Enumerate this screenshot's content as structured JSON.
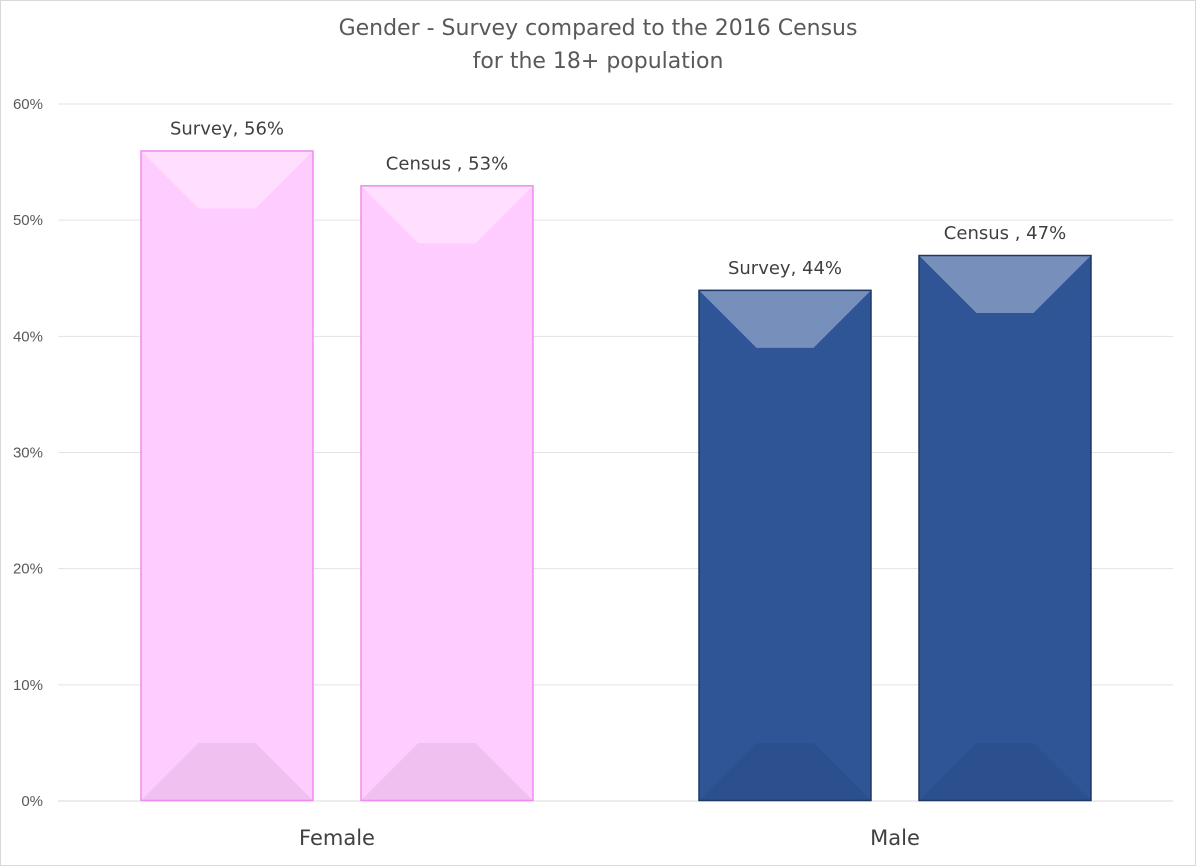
{
  "chart_data": {
    "type": "bar",
    "title": "Gender - Survey compared to the 2016 Census",
    "subtitle": "for the 18+ population",
    "categories": [
      "Female",
      "Male"
    ],
    "y_tick_labels": [
      "0%",
      "10%",
      "20%",
      "30%",
      "40%",
      "50%",
      "60%"
    ],
    "ylim": [
      0,
      60
    ],
    "grid": true,
    "legend": "none",
    "bars": [
      {
        "category": "Female",
        "label": "Survey, 56%",
        "value": 56,
        "color": "#ffccff",
        "edge": "#f08cf0"
      },
      {
        "category": "Female",
        "label": "Census , 53%",
        "value": 53,
        "color": "#ffccff",
        "edge": "#f08cf0"
      },
      {
        "category": "Male",
        "label": "Survey, 44%",
        "value": 44,
        "color": "#2f5597",
        "edge": "#1f3864"
      },
      {
        "category": "Male",
        "label": "Census , 47%",
        "value": 47,
        "color": "#2f5597",
        "edge": "#1f3864"
      }
    ]
  }
}
